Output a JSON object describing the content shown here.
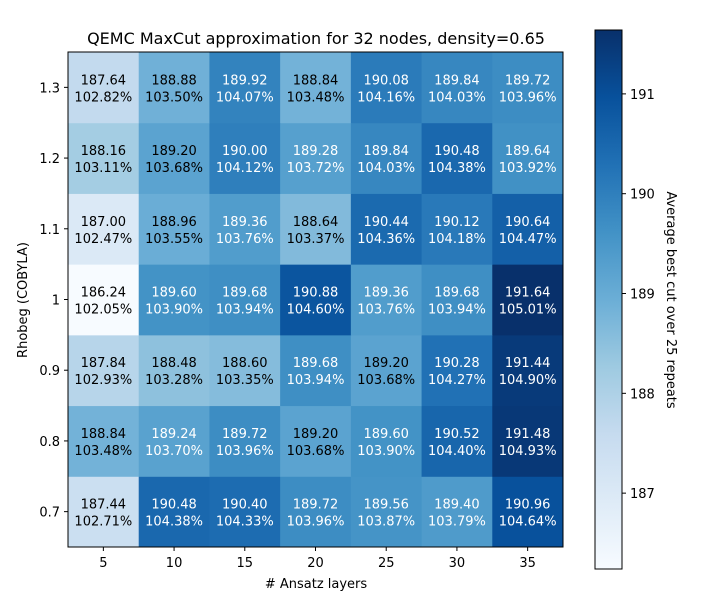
{
  "chart_data": {
    "type": "heatmap",
    "title": "QEMC MaxCut approximation for 32 nodes, density=0.65",
    "xlabel": "# Ansatz layers",
    "ylabel": "Rhobeg (COBYLA)",
    "colorbar_label": "Average best cut over 25 repeats",
    "colormap": "Blues",
    "x": [
      "5",
      "10",
      "15",
      "20",
      "25",
      "30",
      "35"
    ],
    "y": [
      "0.7",
      "0.8",
      "0.9",
      "1",
      "1.1",
      "1.2",
      "1.3"
    ],
    "values": [
      [
        187.44,
        190.48,
        190.4,
        189.72,
        189.56,
        189.4,
        190.96
      ],
      [
        188.84,
        189.24,
        189.72,
        189.2,
        189.6,
        190.52,
        191.48
      ],
      [
        187.84,
        188.48,
        188.6,
        189.68,
        189.2,
        190.28,
        191.44
      ],
      [
        186.24,
        189.6,
        189.68,
        190.88,
        189.36,
        189.68,
        191.64
      ],
      [
        187.0,
        188.96,
        189.36,
        188.64,
        190.44,
        190.12,
        190.64
      ],
      [
        188.16,
        189.2,
        190.0,
        189.28,
        189.84,
        190.48,
        189.64
      ],
      [
        187.64,
        188.88,
        189.92,
        188.84,
        190.08,
        189.84,
        189.72
      ]
    ],
    "value_labels": [
      [
        "187.44",
        "190.48",
        "190.40",
        "189.72",
        "189.56",
        "189.40",
        "190.96"
      ],
      [
        "188.84",
        "189.24",
        "189.72",
        "189.20",
        "189.60",
        "190.52",
        "191.48"
      ],
      [
        "187.84",
        "188.48",
        "188.60",
        "189.68",
        "189.20",
        "190.28",
        "191.44"
      ],
      [
        "186.24",
        "189.60",
        "189.68",
        "190.88",
        "189.36",
        "189.68",
        "191.64"
      ],
      [
        "187.00",
        "188.96",
        "189.36",
        "188.64",
        "190.44",
        "190.12",
        "190.64"
      ],
      [
        "188.16",
        "189.20",
        "190.00",
        "189.28",
        "189.84",
        "190.48",
        "189.64"
      ],
      [
        "187.64",
        "188.88",
        "189.92",
        "188.84",
        "190.08",
        "189.84",
        "189.72"
      ]
    ],
    "percent_labels": [
      [
        "102.71%",
        "104.38%",
        "104.33%",
        "103.96%",
        "103.87%",
        "103.79%",
        "104.64%"
      ],
      [
        "103.48%",
        "103.70%",
        "103.96%",
        "103.68%",
        "103.90%",
        "104.40%",
        "104.93%"
      ],
      [
        "102.93%",
        "103.28%",
        "103.35%",
        "103.94%",
        "103.68%",
        "104.27%",
        "104.90%"
      ],
      [
        "102.05%",
        "103.90%",
        "103.94%",
        "104.60%",
        "103.76%",
        "103.94%",
        "105.01%"
      ],
      [
        "102.47%",
        "103.55%",
        "103.76%",
        "103.37%",
        "104.36%",
        "104.18%",
        "104.47%"
      ],
      [
        "103.11%",
        "103.68%",
        "104.12%",
        "103.72%",
        "104.03%",
        "104.38%",
        "103.92%"
      ],
      [
        "102.82%",
        "103.50%",
        "104.07%",
        "103.48%",
        "104.16%",
        "104.03%",
        "103.96%"
      ]
    ],
    "colorbar_range": [
      186.24,
      191.64
    ],
    "colorbar_ticks": [
      "187",
      "188",
      "189",
      "190",
      "191"
    ],
    "colorbar_tick_values": [
      187,
      188,
      189,
      190,
      191
    ]
  }
}
